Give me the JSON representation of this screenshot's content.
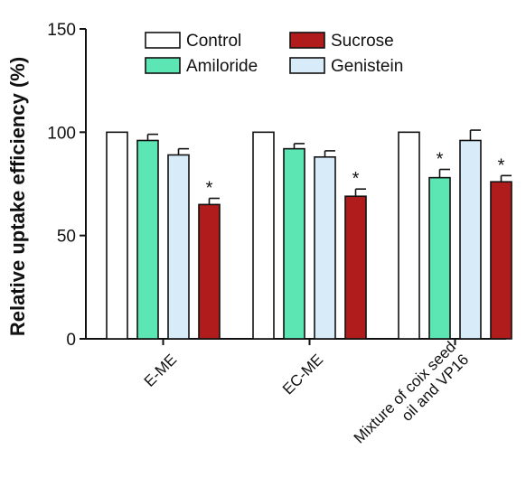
{
  "chart_data": {
    "type": "bar",
    "title": "",
    "xlabel": "",
    "ylabel": "Relative uptake efficiency (%)",
    "ylim": [
      0,
      150
    ],
    "yticks": [
      0,
      50,
      100,
      150
    ],
    "grid": false,
    "legend_position": "top",
    "categories": [
      {
        "lines": [
          "E-ME"
        ]
      },
      {
        "lines": [
          "EC-ME"
        ]
      },
      {
        "lines": [
          "Mixture of coix seed",
          "oil and VP16"
        ]
      }
    ],
    "series": [
      {
        "name": "Control",
        "color": "#ffffff",
        "values": [
          100,
          100,
          100
        ],
        "errors": [
          0,
          0,
          0
        ],
        "significant": [
          false,
          false,
          false
        ]
      },
      {
        "name": "Amiloride",
        "color": "#5ce6b3",
        "values": [
          96,
          92,
          78
        ],
        "errors": [
          3,
          2.5,
          4
        ],
        "significant": [
          false,
          false,
          true
        ]
      },
      {
        "name": "Genistein",
        "color": "#d7ebf8",
        "values": [
          89,
          88,
          96
        ],
        "errors": [
          3,
          3,
          5
        ],
        "significant": [
          false,
          false,
          false
        ]
      },
      {
        "name": "Sucrose",
        "color": "#b01c1c",
        "values": [
          65,
          69,
          76
        ],
        "errors": [
          3,
          3.5,
          3
        ],
        "significant": [
          true,
          true,
          true
        ]
      }
    ],
    "bar_order": [
      "Control",
      "Amiloride",
      "Genistein",
      "Sucrose"
    ],
    "legend_order": [
      "Control",
      "Sucrose",
      "Amiloride",
      "Genistein"
    ],
    "significance_marker": "*"
  }
}
